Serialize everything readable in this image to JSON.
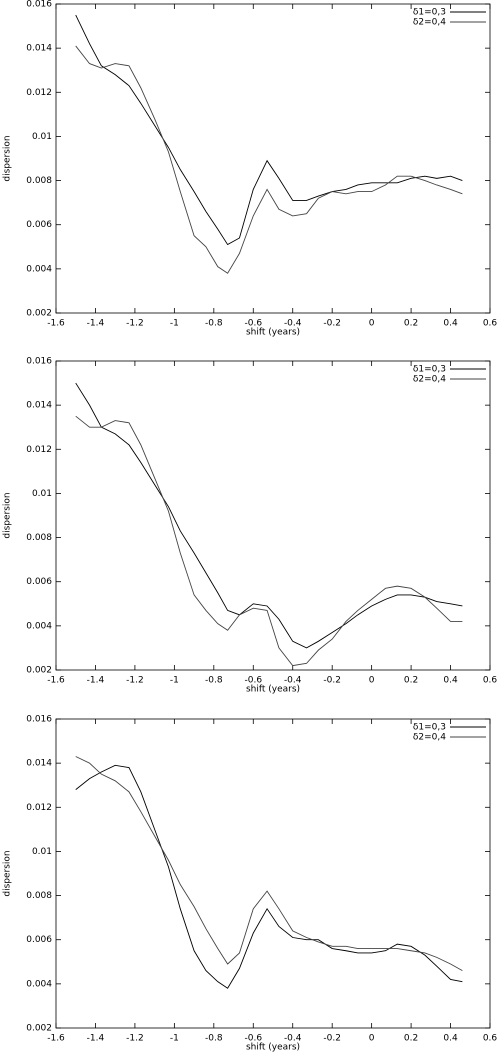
{
  "chart_data": [
    {
      "type": "line",
      "xlabel": "shift (years)",
      "ylabel": "dispersion",
      "x": [
        -1.5,
        -1.43,
        -1.37,
        -1.3,
        -1.23,
        -1.17,
        -1.1,
        -1.03,
        -0.97,
        -0.9,
        -0.84,
        -0.78,
        -0.73,
        -0.67,
        -0.6,
        -0.53,
        -0.47,
        -0.4,
        -0.33,
        -0.27,
        -0.2,
        -0.13,
        -0.07,
        0,
        0.07,
        0.13,
        0.2,
        0.27,
        0.33,
        0.4,
        0.46
      ],
      "series": [
        {
          "name": "δ1=0,3",
          "color": "#000000",
          "values": [
            0.0155,
            0.0142,
            0.0132,
            0.0128,
            0.0123,
            0.0115,
            0.0105,
            0.0095,
            0.0085,
            0.0075,
            0.0066,
            0.0058,
            0.0051,
            0.0054,
            0.0076,
            0.0089,
            0.0081,
            0.0071,
            0.0071,
            0.0073,
            0.0075,
            0.0076,
            0.0078,
            0.0079,
            0.0079,
            0.0079,
            0.0081,
            0.0082,
            0.0081,
            0.0082,
            0.008
          ]
        },
        {
          "name": "δ2=0,4",
          "color": "#444444",
          "values": [
            0.0141,
            0.0133,
            0.0131,
            0.0133,
            0.0132,
            0.0122,
            0.0108,
            0.0093,
            0.0075,
            0.0055,
            0.005,
            0.0041,
            0.0038,
            0.0047,
            0.0064,
            0.0076,
            0.0067,
            0.0064,
            0.0065,
            0.0072,
            0.0075,
            0.0074,
            0.0075,
            0.0075,
            0.0078,
            0.0082,
            0.0082,
            0.008,
            0.0078,
            0.0076,
            0.0074
          ]
        }
      ],
      "xlim": [
        -1.6,
        0.6
      ],
      "xticks": [
        -1.6,
        -1.4,
        -1.2,
        -1,
        -0.8,
        -0.6,
        -0.4,
        -0.2,
        0,
        0.2,
        0.4,
        0.6
      ],
      "ylim": [
        0.002,
        0.016
      ],
      "yticks": [
        0.002,
        0.004,
        0.006,
        0.008,
        0.01,
        0.012,
        0.014,
        0.016
      ],
      "grid": false,
      "legend": "upper right"
    },
    {
      "type": "line",
      "xlabel": "shift (years)",
      "ylabel": "dispersion",
      "x": [
        -1.5,
        -1.43,
        -1.37,
        -1.3,
        -1.23,
        -1.17,
        -1.1,
        -1.03,
        -0.97,
        -0.9,
        -0.84,
        -0.78,
        -0.73,
        -0.67,
        -0.6,
        -0.53,
        -0.47,
        -0.4,
        -0.33,
        -0.27,
        -0.2,
        -0.13,
        -0.07,
        0,
        0.07,
        0.13,
        0.2,
        0.27,
        0.33,
        0.4,
        0.46
      ],
      "series": [
        {
          "name": "δ1=0,3",
          "color": "#000000",
          "values": [
            0.015,
            0.014,
            0.013,
            0.0127,
            0.0122,
            0.0114,
            0.0104,
            0.0094,
            0.0083,
            0.0073,
            0.0064,
            0.0055,
            0.0047,
            0.0045,
            0.005,
            0.0049,
            0.0043,
            0.0033,
            0.003,
            0.0033,
            0.0037,
            0.0041,
            0.0045,
            0.0049,
            0.0052,
            0.0054,
            0.0054,
            0.0053,
            0.0051,
            0.005,
            0.0049
          ]
        },
        {
          "name": "δ2=0,4",
          "color": "#444444",
          "values": [
            0.0135,
            0.013,
            0.013,
            0.0133,
            0.0132,
            0.0122,
            0.0107,
            0.0092,
            0.0073,
            0.0054,
            0.0047,
            0.0041,
            0.0038,
            0.0045,
            0.0048,
            0.0047,
            0.003,
            0.0022,
            0.0023,
            0.0029,
            0.0034,
            0.0042,
            0.0047,
            0.0052,
            0.0057,
            0.0058,
            0.0057,
            0.0053,
            0.0048,
            0.0042,
            0.0042
          ]
        }
      ],
      "xlim": [
        -1.6,
        0.6
      ],
      "xticks": [
        -1.6,
        -1.4,
        -1.2,
        -1,
        -0.8,
        -0.6,
        -0.4,
        -0.2,
        0,
        0.2,
        0.4,
        0.6
      ],
      "ylim": [
        0.002,
        0.016
      ],
      "yticks": [
        0.002,
        0.004,
        0.006,
        0.008,
        0.01,
        0.012,
        0.014,
        0.016
      ],
      "grid": false,
      "legend": "upper right"
    },
    {
      "type": "line",
      "xlabel": "shift (years)",
      "ylabel": "dispersion",
      "x": [
        -1.5,
        -1.43,
        -1.37,
        -1.3,
        -1.23,
        -1.17,
        -1.1,
        -1.03,
        -0.97,
        -0.9,
        -0.84,
        -0.78,
        -0.73,
        -0.67,
        -0.6,
        -0.53,
        -0.47,
        -0.4,
        -0.33,
        -0.27,
        -0.2,
        -0.13,
        -0.07,
        0,
        0.07,
        0.13,
        0.2,
        0.27,
        0.33,
        0.4,
        0.46
      ],
      "series": [
        {
          "name": "δ1=0,3",
          "color": "#000000",
          "values": [
            0.0128,
            0.0133,
            0.0136,
            0.0139,
            0.0138,
            0.0127,
            0.011,
            0.0093,
            0.0074,
            0.0055,
            0.0046,
            0.0041,
            0.0038,
            0.0047,
            0.0063,
            0.0074,
            0.0066,
            0.0061,
            0.006,
            0.006,
            0.0056,
            0.0055,
            0.0054,
            0.0054,
            0.0055,
            0.0058,
            0.0057,
            0.0053,
            0.0048,
            0.0042,
            0.0041
          ]
        },
        {
          "name": "δ2=0,4",
          "color": "#444444",
          "values": [
            0.0143,
            0.014,
            0.0135,
            0.0132,
            0.0127,
            0.0118,
            0.0107,
            0.0096,
            0.0085,
            0.0075,
            0.0065,
            0.0056,
            0.0049,
            0.0054,
            0.0074,
            0.0082,
            0.0074,
            0.0064,
            0.0061,
            0.0059,
            0.0057,
            0.0057,
            0.0056,
            0.0056,
            0.0056,
            0.0056,
            0.0055,
            0.0054,
            0.0052,
            0.0049,
            0.0046
          ]
        }
      ],
      "xlim": [
        -1.6,
        0.6
      ],
      "xticks": [
        -1.6,
        -1.4,
        -1.2,
        -1,
        -0.8,
        -0.6,
        -0.4,
        -0.2,
        0,
        0.2,
        0.4,
        0.6
      ],
      "ylim": [
        0.002,
        0.016
      ],
      "yticks": [
        0.002,
        0.004,
        0.006,
        0.008,
        0.01,
        0.012,
        0.014,
        0.016
      ],
      "grid": false,
      "legend": "upper right"
    }
  ]
}
